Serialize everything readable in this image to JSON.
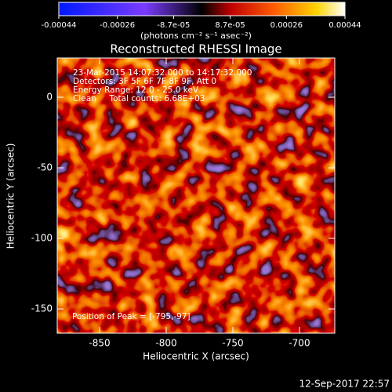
{
  "chart_data": {
    "type": "image",
    "title": "Reconstructed RHESSI Image",
    "xlabel": "Heliocentric X (arcsec)",
    "ylabel": "Heliocentric Y (arcsec)",
    "xlim": [
      -881.8,
      -673.5
    ],
    "ylim": [
      -167.2,
      27.8
    ],
    "xticks": [
      -850,
      -800,
      -750,
      -700
    ],
    "yticks": [
      -150,
      -100,
      -50,
      0
    ],
    "annotations": [
      "23-Mar-2015 14:07:32.000 to 14:17:32.000",
      "Detectors: 3F 5F 6F 7F 8F 9F, Att 0",
      "Energy Range: 12.0 - 25.0 keV",
      "Clean     Total counts: 6.68E+03"
    ],
    "peak_label": "Position of Peak = [-795,-97]",
    "colorbar": {
      "lim": [
        -0.00044,
        0.00044
      ],
      "ticks": [
        -0.00044,
        -0.00026,
        {
          "value": -8.7e-05,
          "label": "-8.7e-05"
        },
        {
          "value": 8.7e-05,
          "label": "8.7e-05"
        },
        0.00026,
        0.00044
      ],
      "label": "(photons cm⁻² s⁻¹ asec⁻²)"
    },
    "footer": "12-Sep-2017 22:57"
  }
}
